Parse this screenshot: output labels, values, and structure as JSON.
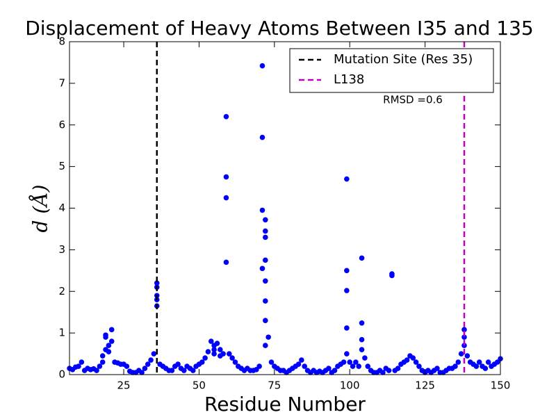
{
  "chart_data": {
    "type": "scatter",
    "title": "Displacement of Heavy Atoms Between I35 and 135",
    "x_label": "Residue Number",
    "y_label": "d (Å)",
    "annotation": "RMSD =0.6",
    "color": "#0000ff",
    "xlim": [
      7,
      150
    ],
    "ylim": [
      0,
      8
    ],
    "xticks": [
      25,
      50,
      75,
      100,
      125,
      150
    ],
    "yticks": [
      0,
      1,
      2,
      3,
      4,
      5,
      6,
      7,
      8
    ],
    "vlines": [
      {
        "x": 36,
        "label": "Mutation Site (Res 35)",
        "color": "#000000"
      },
      {
        "x": 138,
        "label": "L138",
        "color": "#bf00bf"
      }
    ],
    "x": [
      7,
      8,
      9,
      10,
      11,
      12,
      13,
      14,
      15,
      16,
      17,
      18,
      19,
      20,
      21,
      22,
      23,
      24,
      25,
      26,
      27,
      28,
      29,
      30,
      31,
      32,
      33,
      34,
      35,
      36,
      37,
      38,
      39,
      40,
      41,
      42,
      43,
      44,
      45,
      46,
      47,
      48,
      49,
      50,
      51,
      52,
      53,
      54,
      55,
      56,
      57,
      58,
      59,
      60,
      61,
      62,
      63,
      64,
      65,
      66,
      67,
      68,
      69,
      70,
      71,
      72,
      73,
      74,
      75,
      76,
      77,
      78,
      79,
      80,
      81,
      82,
      83,
      84,
      85,
      86,
      87,
      88,
      89,
      90,
      91,
      92,
      93,
      94,
      95,
      96,
      97,
      98,
      99,
      100,
      101,
      102,
      103,
      104,
      105,
      106,
      107,
      108,
      109,
      110,
      111,
      112,
      113,
      114,
      115,
      116,
      117,
      118,
      119,
      120,
      121,
      122,
      123,
      124,
      125,
      126,
      127,
      128,
      129,
      130,
      131,
      132,
      133,
      134,
      135,
      136,
      137,
      138,
      139,
      140,
      141,
      142,
      143,
      144,
      145,
      146,
      147,
      148,
      149,
      150,
      36,
      36,
      36,
      36,
      59,
      59,
      59,
      71,
      71,
      71,
      72,
      72,
      72,
      72,
      72,
      72,
      72,
      99,
      99,
      99,
      99,
      104,
      104,
      104,
      114,
      138,
      138,
      19,
      19,
      20,
      55,
      55,
      57,
      18,
      21
    ],
    "values": [
      0.15,
      0.12,
      0.18,
      0.2,
      0.3,
      0.1,
      0.15,
      0.12,
      0.14,
      0.1,
      0.2,
      0.45,
      0.9,
      0.7,
      1.08,
      0.3,
      0.28,
      0.25,
      0.25,
      0.2,
      0.08,
      0.05,
      0.05,
      0.1,
      0.05,
      0.15,
      0.25,
      0.35,
      0.5,
      2.2,
      0.25,
      0.2,
      0.15,
      0.1,
      0.1,
      0.2,
      0.25,
      0.15,
      0.1,
      0.2,
      0.15,
      0.1,
      0.2,
      0.25,
      0.3,
      0.4,
      0.55,
      0.8,
      0.7,
      0.75,
      0.6,
      0.5,
      6.2,
      0.5,
      0.4,
      0.3,
      0.2,
      0.15,
      0.1,
      0.15,
      0.1,
      0.1,
      0.12,
      0.2,
      7.42,
      3.72,
      0.9,
      0.3,
      0.2,
      0.15,
      0.1,
      0.1,
      0.05,
      0.1,
      0.15,
      0.2,
      0.25,
      0.35,
      0.2,
      0.1,
      0.05,
      0.1,
      0.05,
      0.08,
      0.05,
      0.1,
      0.15,
      0.05,
      0.1,
      0.2,
      0.25,
      0.3,
      4.7,
      0.3,
      0.2,
      0.3,
      0.2,
      2.8,
      0.4,
      0.2,
      0.1,
      0.05,
      0.05,
      0.1,
      0.05,
      0.15,
      0.1,
      2.42,
      0.1,
      0.15,
      0.25,
      0.3,
      0.35,
      0.45,
      0.4,
      0.3,
      0.2,
      0.1,
      0.05,
      0.1,
      0.05,
      0.1,
      0.15,
      0.05,
      0.05,
      0.1,
      0.15,
      0.15,
      0.2,
      0.3,
      0.5,
      1.08,
      0.45,
      0.3,
      0.25,
      0.2,
      0.3,
      0.2,
      0.15,
      0.3,
      0.2,
      0.25,
      0.3,
      0.38,
      2.1,
      1.9,
      1.8,
      1.65,
      4.75,
      4.25,
      2.7,
      5.7,
      3.95,
      2.55,
      3.45,
      3.3,
      2.75,
      2.25,
      1.77,
      1.3,
      0.7,
      2.5,
      2.02,
      1.12,
      0.5,
      1.24,
      0.84,
      0.6,
      2.38,
      0.9,
      0.7,
      0.95,
      0.6,
      0.55,
      0.6,
      0.5,
      0.45,
      0.3,
      0.8
    ]
  }
}
